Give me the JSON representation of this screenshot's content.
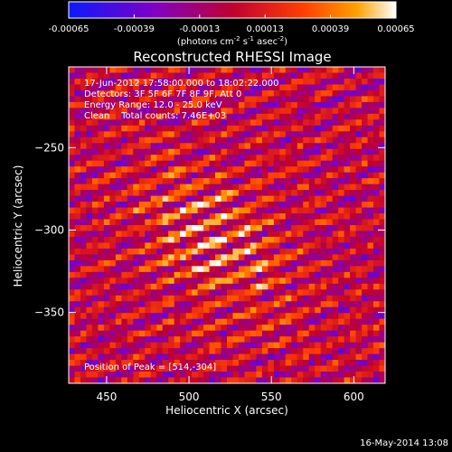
{
  "chart_data": {
    "type": "heatmap",
    "title": "Reconstructed RHESSI Image",
    "xlabel": "Heliocentric X (arcsec)",
    "ylabel": "Heliocentric Y (arcsec)",
    "xlim": [
      427,
      619
    ],
    "ylim": [
      -393,
      -201
    ],
    "xticks": [
      450,
      500,
      550,
      600
    ],
    "yticks": [
      -350,
      -300,
      -250
    ],
    "colorbar": {
      "ticklabels": [
        "-0.00065",
        "-0.00039",
        "-0.00013",
        "0.00013",
        "0.00039",
        "0.00065"
      ],
      "unit_label": [
        "(photons cm",
        "-2",
        " s",
        "-1",
        " asec",
        "-2",
        ")"
      ],
      "range": [
        -0.00065,
        0.00065
      ],
      "colors": [
        "#0b1aff",
        "#7a00c8",
        "#c00030",
        "#ff4000",
        "#ffa000",
        "#ffffff"
      ]
    },
    "info_lines": [
      "17-Jun-2012 17:58:00.000 to 18:02:22.000",
      "Detectors: 3F 5F 6F 7F 8F 9F, Att 0",
      "Energy Range: 12.0 - 25.0 keV",
      "Clean    Total counts: 7.46E+03"
    ],
    "peak_text": "Position of Peak = [514,-304]",
    "peak": [
      514,
      -304
    ],
    "footer_date": "16-May-2014 13:08"
  }
}
